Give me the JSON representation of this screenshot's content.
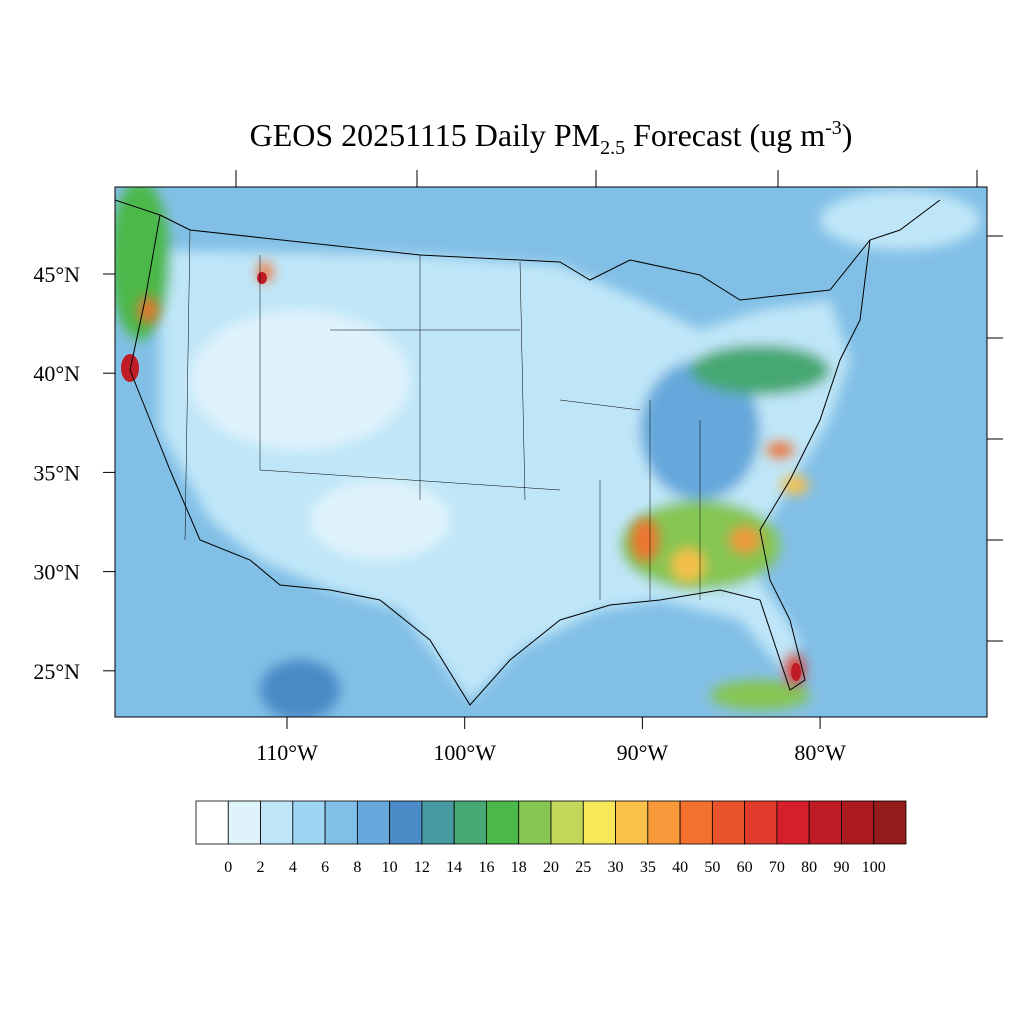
{
  "title": {
    "main": "GEOS 20251115 Daily PM",
    "subscript": "2.5",
    "middle": " Forecast (ug m",
    "superscript": "-3",
    "end": ")"
  },
  "lat_labels": [
    "45°N",
    "40°N",
    "35°N",
    "30°N",
    "25°N"
  ],
  "lon_labels": [
    "110°W",
    "100°W",
    "90°W",
    "80°W"
  ],
  "colorbar": {
    "levels": [
      0,
      2,
      4,
      6,
      8,
      10,
      12,
      14,
      16,
      18,
      20,
      25,
      30,
      35,
      40,
      50,
      60,
      70,
      80,
      90,
      100
    ],
    "colors": [
      "#ffffff",
      "#dff3fb",
      "#bfe6f8",
      "#9dd6f3",
      "#82bfe6",
      "#66a8db",
      "#4a8ac6",
      "#479a9f",
      "#47a873",
      "#4bb84a",
      "#86c652",
      "#c3d75b",
      "#f7e859",
      "#f9c04a",
      "#f7983b",
      "#f3702d",
      "#e8532c",
      "#df3a2a",
      "#d51f2a",
      "#c01c25",
      "#aa1a1f",
      "#951a1b"
    ]
  }
}
